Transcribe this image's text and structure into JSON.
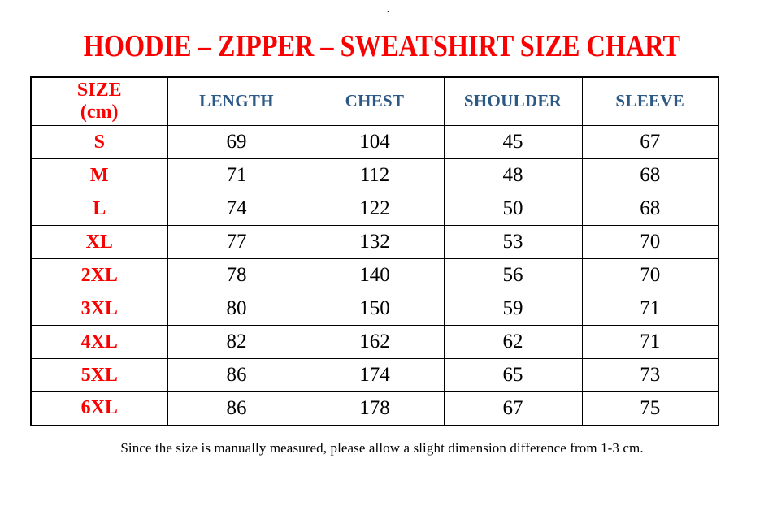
{
  "page": {
    "top_dot": ".",
    "title": "HOODIE – ZIPPER – SWEATSHIRT SIZE CHART",
    "footnote": "Since the size is manually measured, please allow a slight dimension difference from 1-3 cm."
  },
  "colors": {
    "title_red": "#fa0000",
    "header_blue": "#2d5986",
    "body_black": "#000000",
    "border_black": "#000000",
    "background": "#ffffff"
  },
  "table": {
    "header": {
      "size_line1": "SIZE",
      "size_line2": "(cm)",
      "cols": [
        "LENGTH",
        "CHEST",
        "SHOULDER",
        "SLEEVE"
      ]
    },
    "rows": [
      {
        "size": "S",
        "length": "69",
        "chest": "104",
        "shoulder": "45",
        "sleeve": "67"
      },
      {
        "size": "M",
        "length": "71",
        "chest": "112",
        "shoulder": "48",
        "sleeve": "68"
      },
      {
        "size": "L",
        "length": "74",
        "chest": "122",
        "shoulder": "50",
        "sleeve": "68"
      },
      {
        "size": "XL",
        "length": "77",
        "chest": "132",
        "shoulder": "53",
        "sleeve": "70"
      },
      {
        "size": "2XL",
        "length": "78",
        "chest": "140",
        "shoulder": "56",
        "sleeve": "70"
      },
      {
        "size": "3XL",
        "length": "80",
        "chest": "150",
        "shoulder": "59",
        "sleeve": "71"
      },
      {
        "size": "4XL",
        "length": "82",
        "chest": "162",
        "shoulder": "62",
        "sleeve": "71"
      },
      {
        "size": "5XL",
        "length": "86",
        "chest": "174",
        "shoulder": "65",
        "sleeve": "73"
      },
      {
        "size": "6XL",
        "length": "86",
        "chest": "178",
        "shoulder": "67",
        "sleeve": "75"
      }
    ]
  }
}
